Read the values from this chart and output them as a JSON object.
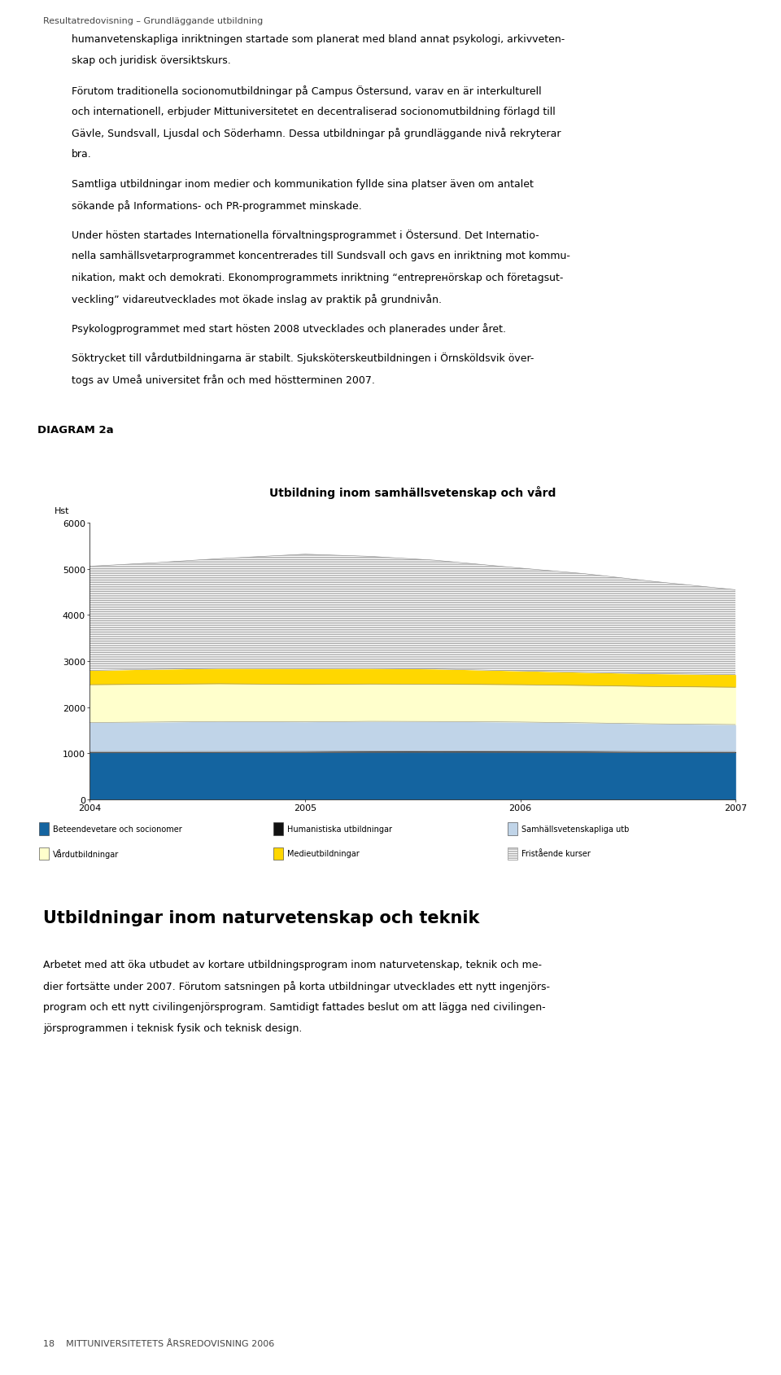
{
  "title": "Utbildning inom samhällsvetenskap och vård",
  "diagram_label": "DIAGRAM 2a",
  "ylabel": "Hst",
  "years": [
    2004,
    2004.3,
    2004.6,
    2005,
    2005.3,
    2005.6,
    2006,
    2006.3,
    2006.6,
    2007
  ],
  "beteendevetare": [
    1010,
    1010,
    1012,
    1015,
    1020,
    1022,
    1020,
    1018,
    1012,
    1010
  ],
  "humanistiska": [
    25,
    25,
    25,
    25,
    25,
    25,
    25,
    25,
    25,
    25
  ],
  "samhalls": [
    630,
    640,
    650,
    640,
    645,
    640,
    630,
    615,
    600,
    585
  ],
  "vard": [
    820,
    820,
    818,
    812,
    810,
    810,
    810,
    810,
    810,
    810
  ],
  "medie": [
    310,
    325,
    335,
    345,
    340,
    330,
    300,
    285,
    278,
    275
  ],
  "fristaende": [
    2260,
    2310,
    2380,
    2480,
    2430,
    2360,
    2230,
    2140,
    2010,
    1840
  ],
  "series_colors": [
    "#1464a0",
    "#111111",
    "#c0d4e8",
    "#ffffcc",
    "#ffd700",
    "#d0d0d0"
  ],
  "series_labels": [
    "Beteendevetare och socionomer",
    "Humanistiska utbildningar",
    "Samhällsvetenskapliga utb",
    "Vårdutbildningar",
    "Medieutbildningar",
    "Fristående kurser"
  ],
  "ylim": [
    0,
    6000
  ],
  "yticks": [
    0,
    1000,
    2000,
    3000,
    4000,
    5000,
    6000
  ],
  "xticks": [
    2004,
    2005,
    2006,
    2007
  ],
  "header_color": "#f5c400",
  "border_color": "#f5c400",
  "page_header": "Resultatredovisning – Grundläggande utbildning",
  "section_title": "Utbildningar inom naturvetenskap och teknik",
  "footer_text": "18    MITTUNIVERSITETETS ÅRSREDOVISNING 2006",
  "para1": [
    "humanvetenskapliga inriktningen startade som planerat med bland annat psykologi, arkivveten-",
    "skap och juridisk översiktskurs."
  ],
  "para2": [
    "Förutom traditionella socionomutbildningar på Campus Östersund, varav en är interkulturell",
    "och internationell, erbjuder Mittuniversitetet en decentraliserad socionomutbildning förlagd till",
    "Gävle, Sundsvall, Ljusdal och Söderhamn. Dessa utbildningar på grundläggande nivå rekryterar",
    "bra."
  ],
  "para3": [
    "Samtliga utbildningar inom medier och kommunikation fyllde sina platser även om antalet",
    "sökande på Informations- och PR-programmet minskade."
  ],
  "para4": [
    "Under hösten startades Internationella förvaltningsprogrammet i Östersund. Det Internatio-",
    "nella samhällsvetarprogrammet koncentrerades till Sundsvall och gavs en inriktning mot kommu-",
    "nikation, makt och demokrati. Ekonomprogrammets inriktning “entreprенörskap och företagsut-",
    "veckling” vidareutvecklades mot ökade inslag av praktik på grundnivån."
  ],
  "para5": [
    "Psykologprogrammet med start hösten 2008 utvecklades och planerades under året."
  ],
  "para6": [
    "Söktrycket till vårdutbildningarna är stabilt. Sjuksköterskeutbildningen i Örnsköldsvik över-",
    "togs av Umeå universitet från och med höstterminen 2007."
  ],
  "section_lines": [
    "Arbetet med att öka utbudet av kortare utbildningsprogram inom naturvetenskap, teknik och me-",
    "dier fortsätte under 2007. Förutom satsningen på korta utbildningar utvecklades ett nytt ingenjörs-",
    "program och ett nytt civilingenjörsprogram. Samtidigt fattades beslut om att lägga ned civilingen-",
    "jörsprogrammen i teknisk fysik och teknisk design."
  ]
}
